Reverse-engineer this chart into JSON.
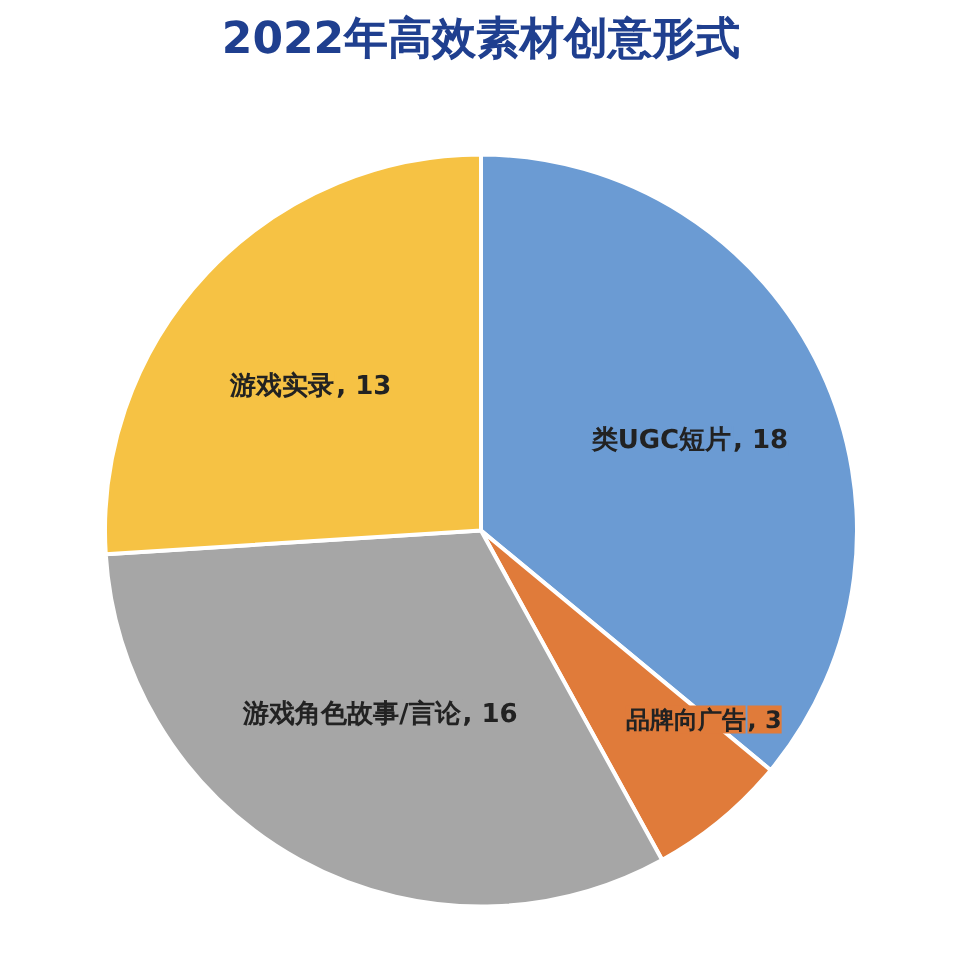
{
  "chart_data": {
    "type": "pie",
    "title": "2022年高效素材创意形式",
    "categories": [
      "类UGC短片",
      "品牌向广告",
      "游戏角色故事/言论",
      "游戏实录"
    ],
    "values": [
      18,
      3,
      16,
      13
    ],
    "colors": [
      "#6b9bd3",
      "#e07b3a",
      "#a6a6a6",
      "#f6c244"
    ],
    "value_labels": [
      ", 18",
      ", 3",
      ", 16",
      ", 13"
    ]
  }
}
